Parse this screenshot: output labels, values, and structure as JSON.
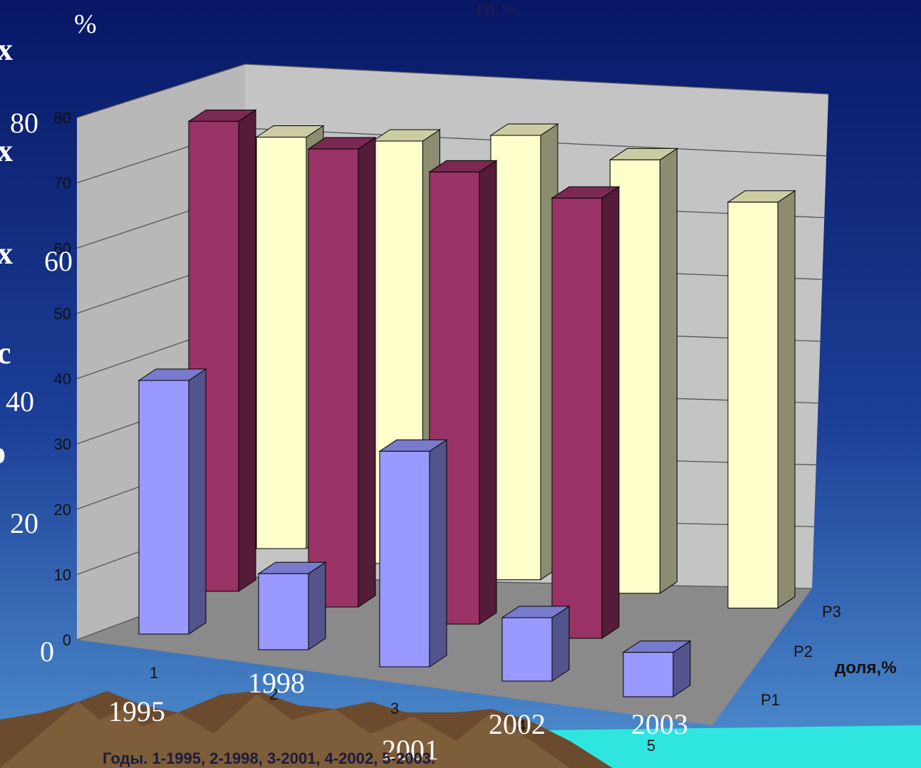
{
  "slide": {
    "title_fragment": "(3), %.",
    "percent_mark": "%",
    "left_cut_letters": [
      "x",
      "x",
      "x",
      "c",
      "o"
    ],
    "left_axis_ticks": [
      "80",
      "60",
      "40",
      "20",
      "0"
    ],
    "year_labels": [
      "1995",
      "1998",
      "2001",
      "2002",
      "2003"
    ],
    "colors": {
      "background_top": "#0a1a6e",
      "background_bottom": "#3a78c0",
      "sea": "#2de8e0",
      "mountains": "#6b4a2e"
    }
  },
  "chart_data": {
    "type": "bar",
    "categories": [
      "1",
      "2",
      "3",
      "4",
      "5"
    ],
    "series": [
      {
        "name": "P1",
        "values": [
          40,
          12,
          34,
          10,
          7
        ],
        "color": "#9999ff"
      },
      {
        "name": "P2",
        "values": [
          79,
          77,
          76,
          74,
          null
        ],
        "color": "#993366"
      },
      {
        "name": "P3",
        "values": [
          75,
          77,
          81,
          79,
          74
        ],
        "color": "#ffffcc"
      }
    ],
    "xlabel": "Годы. 1-1995, 2-1998, 3-2001, 4-2002, 5-2003.",
    "zlabel": "доля,%",
    "ylim": [
      0,
      80
    ],
    "yticks": [
      "0",
      "10",
      "20",
      "30",
      "40",
      "50",
      "60",
      "70",
      "80"
    ],
    "grid": true,
    "colors": {
      "wall": "#c0c0c0",
      "floor": "#808080"
    }
  }
}
